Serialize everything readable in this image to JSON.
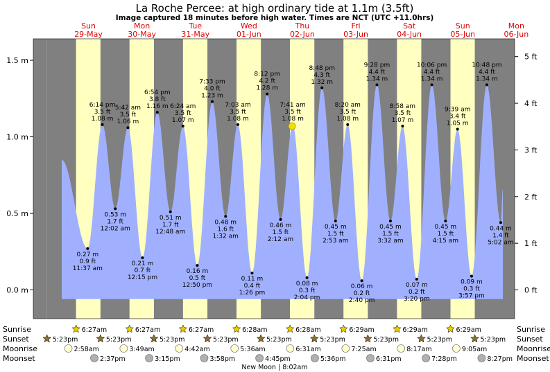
{
  "header": {
    "title": "La Roche Percee: at high  ordinary tide at 1.1m (3.5ft)",
    "subtitle": "Image captured 18 minutes before high water. Times are NCT (UTC +11.0hrs)"
  },
  "days": [
    {
      "name": "Sun",
      "date": "29-May"
    },
    {
      "name": "Mon",
      "date": "30-May"
    },
    {
      "name": "Tue",
      "date": "31-May"
    },
    {
      "name": "Wed",
      "date": "01-Jun"
    },
    {
      "name": "Thu",
      "date": "02-Jun"
    },
    {
      "name": "Fri",
      "date": "03-Jun"
    },
    {
      "name": "Sat",
      "date": "04-Jun"
    },
    {
      "name": "Sun",
      "date": "05-Jun"
    },
    {
      "name": "Mon",
      "date": "06-Jun"
    }
  ],
  "colors": {
    "night": "#808080",
    "day": "#ffffc0",
    "water": "#a0b0ff",
    "text": "#000000",
    "day_label": "#e00000",
    "sun_icon": "#e8d000",
    "sunset_icon": "#8b7030",
    "moon_icon": "#ffffd0",
    "moonset_icon": "#b0b0b0",
    "now_marker": "#f0e000"
  },
  "chart_data": {
    "type": "area",
    "title": "La Roche Percee: at high  ordinary tide at 1.1m (3.5ft)",
    "x_unit": "hours from 29-May 00:00 (NCT)",
    "x_range": [
      0,
      198
    ],
    "ylim": [
      -0.06,
      1.66
    ],
    "y_ticks_m": [
      {
        "value": 0.0,
        "label": "0.0 m"
      },
      {
        "value": 0.5,
        "label": "0.5 m"
      },
      {
        "value": 1.0,
        "label": "1.0 m"
      },
      {
        "value": 1.5,
        "label": "1.5 m"
      }
    ],
    "y_ticks_ft": [
      {
        "value": 0,
        "label": "0 ft"
      },
      {
        "value": 1,
        "label": "1 ft"
      },
      {
        "value": 2,
        "label": "2 ft"
      },
      {
        "value": 3,
        "label": "3 ft"
      },
      {
        "value": 4,
        "label": "4 ft"
      },
      {
        "value": 5,
        "label": "5 ft"
      }
    ],
    "grid": false,
    "series_start": {
      "value": 0.85
    },
    "series_end": {
      "value": 0.66
    },
    "extremes": [
      {
        "kind": "high",
        "day": 0,
        "time": "6:14 pm",
        "ft": "3.5 ft",
        "m": "1.08 m",
        "value": 1.08
      },
      {
        "kind": "high",
        "day": 1,
        "time": "6:54 pm",
        "ft": "3.8 ft",
        "m": "1.16 m",
        "value": 1.16
      },
      {
        "kind": "high",
        "day": 2,
        "time": "7:33 pm",
        "ft": "4.0 ft",
        "m": "1.23 m",
        "value": 1.23
      },
      {
        "kind": "high",
        "day": 3,
        "time": "8:12 pm",
        "ft": "4.2 ft",
        "m": "1.28 m",
        "value": 1.28
      },
      {
        "kind": "high",
        "day": 4,
        "time": "8:48 pm",
        "ft": "4.3 ft",
        "m": "1.32 m",
        "value": 1.32
      },
      {
        "kind": "high",
        "day": 5,
        "time": "9:28 pm",
        "ft": "4.4 ft",
        "m": "1.34 m",
        "value": 1.34
      },
      {
        "kind": "high",
        "day": 6,
        "time": "10:06 pm",
        "ft": "4.4 ft",
        "m": "1.34 m",
        "value": 1.34
      },
      {
        "kind": "high",
        "day": 7,
        "time": "10:48 pm",
        "ft": "4.4 ft",
        "m": "1.34 m",
        "value": 1.34
      },
      {
        "kind": "high",
        "day": 1,
        "time": "5:42 am",
        "ft": "3.5 ft",
        "m": "1.06 m",
        "value": 1.06
      },
      {
        "kind": "high",
        "day": 2,
        "time": "6:24 am",
        "ft": "3.5 ft",
        "m": "1.07 m",
        "value": 1.07
      },
      {
        "kind": "high",
        "day": 3,
        "time": "7:03 am",
        "ft": "3.5 ft",
        "m": "1.08 m",
        "value": 1.08
      },
      {
        "kind": "high",
        "day": 4,
        "time": "7:41 am",
        "ft": "3.5 ft",
        "m": "1.08 m",
        "value": 1.08
      },
      {
        "kind": "high",
        "day": 5,
        "time": "8:20 am",
        "ft": "3.5 ft",
        "m": "1.08 m",
        "value": 1.08
      },
      {
        "kind": "high",
        "day": 6,
        "time": "8:58 am",
        "ft": "3.5 ft",
        "m": "1.07 m",
        "value": 1.07
      },
      {
        "kind": "high",
        "day": 7,
        "time": "9:39 am",
        "ft": "3.4 ft",
        "m": "1.05 m",
        "value": 1.05
      },
      {
        "kind": "low",
        "day": 0,
        "time": "11:37 am",
        "ft": "0.9 ft",
        "m": "0.27 m",
        "value": 0.27
      },
      {
        "kind": "low",
        "day": 1,
        "time": "12:15 pm",
        "ft": "0.7 ft",
        "m": "0.21 m",
        "value": 0.21
      },
      {
        "kind": "low",
        "day": 2,
        "time": "12:50 pm",
        "ft": "0.5 ft",
        "m": "0.16 m",
        "value": 0.16
      },
      {
        "kind": "low",
        "day": 3,
        "time": "1:26 pm",
        "ft": "0.4 ft",
        "m": "0.11 m",
        "value": 0.11
      },
      {
        "kind": "low",
        "day": 4,
        "time": "2:04 pm",
        "ft": "0.3 ft",
        "m": "0.08 m",
        "value": 0.08
      },
      {
        "kind": "low",
        "day": 5,
        "time": "2:40 pm",
        "ft": "0.2 ft",
        "m": "0.06 m",
        "value": 0.06
      },
      {
        "kind": "low",
        "day": 6,
        "time": "3:20 pm",
        "ft": "0.2 ft",
        "m": "0.07 m",
        "value": 0.07
      },
      {
        "kind": "low",
        "day": 7,
        "time": "3:57 pm",
        "ft": "0.3 ft",
        "m": "0.09 m",
        "value": 0.09
      },
      {
        "kind": "low",
        "day": 1,
        "time": "12:02 am",
        "ft": "1.7 ft",
        "m": "0.53 m",
        "value": 0.53
      },
      {
        "kind": "low",
        "day": 2,
        "time": "12:48 am",
        "ft": "1.7 ft",
        "m": "0.51 m",
        "value": 0.51
      },
      {
        "kind": "low",
        "day": 3,
        "time": "1:32 am",
        "ft": "1.6 ft",
        "m": "0.48 m",
        "value": 0.48
      },
      {
        "kind": "low",
        "day": 4,
        "time": "2:12 am",
        "ft": "1.5 ft",
        "m": "0.46 m",
        "value": 0.46
      },
      {
        "kind": "low",
        "day": 5,
        "time": "2:53 am",
        "ft": "1.5 ft",
        "m": "0.45 m",
        "value": 0.45
      },
      {
        "kind": "low",
        "day": 6,
        "time": "3:32 am",
        "ft": "1.5 ft",
        "m": "0.45 m",
        "value": 0.45
      },
      {
        "kind": "low",
        "day": 7,
        "time": "4:15 am",
        "ft": "1.5 ft",
        "m": "0.45 m",
        "value": 0.45
      },
      {
        "kind": "low",
        "day": 8,
        "time": "5:02 am",
        "ft": "1.4 ft",
        "m": "0.44 m",
        "value": 0.44
      }
    ],
    "now_marker": {
      "day": 4,
      "time": "7:23 am",
      "value": 1.07
    }
  },
  "sun_moon": {
    "row_labels": {
      "sunrise": "Sunrise",
      "sunset": "Sunset",
      "moonrise": "Moonrise",
      "moonset": "Moonset"
    },
    "sunrise": [
      {
        "day": 0,
        "time": "6:27am"
      },
      {
        "day": 1,
        "time": "6:27am"
      },
      {
        "day": 2,
        "time": "6:27am"
      },
      {
        "day": 3,
        "time": "6:28am"
      },
      {
        "day": 4,
        "time": "6:28am"
      },
      {
        "day": 5,
        "time": "6:29am"
      },
      {
        "day": 6,
        "time": "6:29am"
      },
      {
        "day": 7,
        "time": "6:29am"
      }
    ],
    "sunset": [
      {
        "day": -1,
        "time": "5:23pm"
      },
      {
        "day": 0,
        "time": "5:23pm"
      },
      {
        "day": 1,
        "time": "5:23pm"
      },
      {
        "day": 2,
        "time": "5:23pm"
      },
      {
        "day": 3,
        "time": "5:23pm"
      },
      {
        "day": 4,
        "time": "5:23pm"
      },
      {
        "day": 5,
        "time": "5:23pm"
      },
      {
        "day": 6,
        "time": "5:23pm"
      },
      {
        "day": 7,
        "time": "5:23pm"
      }
    ],
    "moonrise": [
      {
        "day": 0,
        "time": "2:58am"
      },
      {
        "day": 1,
        "time": "3:49am"
      },
      {
        "day": 2,
        "time": "4:42am"
      },
      {
        "day": 3,
        "time": "5:36am"
      },
      {
        "day": 4,
        "time": "6:31am"
      },
      {
        "day": 5,
        "time": "7:25am"
      },
      {
        "day": 6,
        "time": "8:17am"
      },
      {
        "day": 7,
        "time": "9:05am"
      }
    ],
    "moonset": [
      {
        "day": 0,
        "time": "2:37pm"
      },
      {
        "day": 1,
        "time": "3:15pm"
      },
      {
        "day": 2,
        "time": "3:58pm"
      },
      {
        "day": 3,
        "time": "4:45pm"
      },
      {
        "day": 4,
        "time": "5:36pm"
      },
      {
        "day": 5,
        "time": "6:31pm"
      },
      {
        "day": 6,
        "time": "7:28pm"
      },
      {
        "day": 7,
        "time": "8:27pm"
      }
    ],
    "moon_phase": "New Moon | 8:02am"
  }
}
